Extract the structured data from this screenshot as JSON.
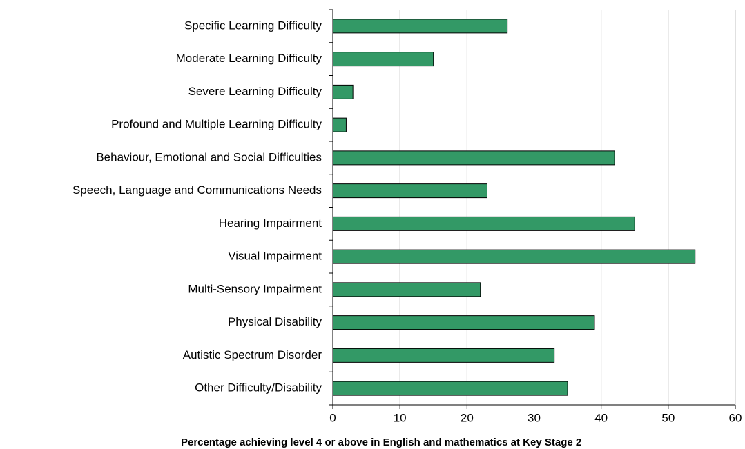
{
  "chart_data": {
    "type": "hbar",
    "x_label": "Percentage achieving level 4 or above in English and mathematics at Key Stage 2",
    "categories": [
      "Specific Learning Difficulty",
      "Moderate Learning Difficulty",
      "Severe Learning Difficulty",
      "Profound and Multiple Learning Difficulty",
      "Behaviour, Emotional and Social Difficulties",
      "Speech, Language and Communications Needs",
      "Hearing Impairment",
      "Visual Impairment",
      "Multi-Sensory Impairment",
      "Physical Disability",
      "Autistic Spectrum Disorder",
      "Other Difficulty/Disability"
    ],
    "values": [
      26,
      15,
      3,
      2,
      42,
      23,
      45,
      54,
      22,
      39,
      33,
      35
    ],
    "color": "#339966",
    "xlim": [
      0,
      60
    ],
    "xticks": [
      0,
      10,
      20,
      30,
      40,
      50,
      60
    ],
    "grid": true
  }
}
